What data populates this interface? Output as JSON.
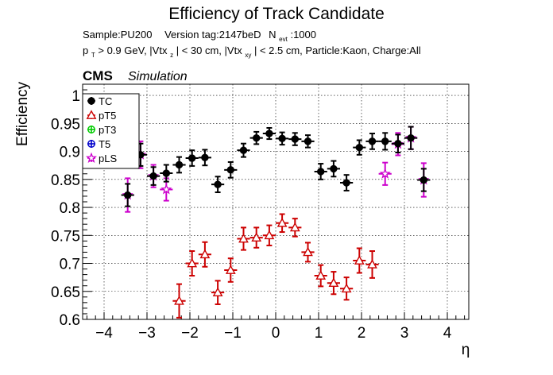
{
  "title": "Efficiency of Track Candidate",
  "info": {
    "sample": "Sample:PU200",
    "version": "Version tag:2147beD",
    "nevt_label": "N",
    "nevt_sub": "evt",
    "nevt_value": ":1000",
    "cuts_pt": "p",
    "cuts_pt_sub": "T",
    "cuts_pt_rest": " > 0.9 GeV, |Vtx",
    "cuts_z_sub": "z",
    "cuts_z_rest": "| < 30 cm, |Vtx",
    "cuts_xy_sub": "xy",
    "cuts_xy_rest": "| < 2.5 cm, Particle:Kaon, Charge:All"
  },
  "cms_label": "CMS",
  "sim_label": "Simulation",
  "colors": {
    "TC": "#000000",
    "pT5": "#cc0000",
    "pT3": "#00cc00",
    "T5": "#0000cc",
    "pLS": "#cc00cc"
  },
  "chart_data": {
    "type": "scatter",
    "title": "Efficiency of Track Candidate",
    "xlabel": "η",
    "ylabel": "Efficiency",
    "xlim": [
      -4.5,
      4.5
    ],
    "ylim": [
      0.6,
      1.02
    ],
    "xticks": [
      -4,
      -3,
      -2,
      -1,
      0,
      1,
      2,
      3,
      4
    ],
    "xtick_labels": [
      "−4",
      "−3",
      "−2",
      "−1",
      "0",
      "1",
      "2",
      "3",
      "4"
    ],
    "yticks": [
      0.6,
      0.65,
      0.7,
      0.75,
      0.8,
      0.85,
      0.9,
      0.95,
      1.0
    ],
    "ytick_labels": [
      "0.6",
      "0.65",
      "0.7",
      "0.75",
      "0.8",
      "0.85",
      "0.9",
      "0.95",
      "1"
    ],
    "grid": true,
    "legend_position": "top-left",
    "series": [
      {
        "name": "TC",
        "marker": "filled-circle",
        "x": [
          -3.45,
          -3.15,
          -2.85,
          -2.55,
          -2.25,
          -1.95,
          -1.65,
          -1.35,
          -1.05,
          -0.75,
          -0.45,
          -0.15,
          0.15,
          0.45,
          0.75,
          1.05,
          1.35,
          1.65,
          1.95,
          2.25,
          2.55,
          2.85,
          3.15,
          3.45
        ],
        "y": [
          0.822,
          0.894,
          0.856,
          0.861,
          0.876,
          0.888,
          0.889,
          0.841,
          0.867,
          0.902,
          0.924,
          0.932,
          0.923,
          0.922,
          0.918,
          0.864,
          0.869,
          0.844,
          0.907,
          0.918,
          0.918,
          0.914,
          0.924,
          0.849
        ],
        "yerr": [
          0.02,
          0.02,
          0.016,
          0.015,
          0.014,
          0.014,
          0.014,
          0.014,
          0.014,
          0.012,
          0.011,
          0.01,
          0.011,
          0.011,
          0.011,
          0.014,
          0.014,
          0.014,
          0.013,
          0.014,
          0.015,
          0.016,
          0.02,
          0.02
        ]
      },
      {
        "name": "pT5",
        "marker": "open-triangle",
        "x": [
          -2.25,
          -1.95,
          -1.65,
          -1.35,
          -1.05,
          -0.75,
          -0.45,
          -0.15,
          0.15,
          0.45,
          0.75,
          1.05,
          1.35,
          1.65,
          1.95,
          2.25
        ],
        "y": [
          0.633,
          0.7,
          0.716,
          0.648,
          0.688,
          0.744,
          0.746,
          0.75,
          0.772,
          0.764,
          0.72,
          0.678,
          0.665,
          0.655,
          0.705,
          0.698
        ],
        "yerr": [
          0.03,
          0.022,
          0.022,
          0.021,
          0.021,
          0.02,
          0.018,
          0.018,
          0.016,
          0.016,
          0.017,
          0.019,
          0.02,
          0.02,
          0.022,
          0.024
        ]
      },
      {
        "name": "pT3",
        "marker": "open-circle",
        "x": [],
        "y": [],
        "yerr": []
      },
      {
        "name": "T5",
        "marker": "open-circle",
        "x": [],
        "y": [],
        "yerr": []
      },
      {
        "name": "pLS",
        "marker": "open-star",
        "x": [
          -3.45,
          -3.15,
          -2.85,
          -2.55,
          2.55,
          2.85,
          3.15,
          3.45
        ],
        "y": [
          0.822,
          0.894,
          0.856,
          0.832,
          0.86,
          0.913,
          0.924,
          0.849
        ],
        "yerr": [
          0.03,
          0.024,
          0.02,
          0.02,
          0.02,
          0.02,
          0.02,
          0.03
        ]
      }
    ],
    "xerr": 0.15
  }
}
